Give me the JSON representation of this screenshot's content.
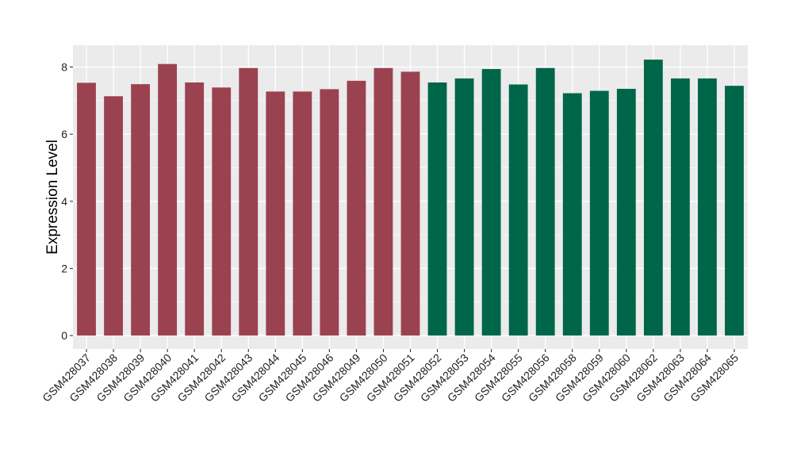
{
  "chart_data": {
    "type": "bar",
    "title": "",
    "xlabel": "",
    "ylabel": "Expression Level",
    "ylim": [
      -0.4,
      8.65
    ],
    "yticks": [
      0,
      2,
      4,
      6,
      8
    ],
    "grid": true,
    "legend": "none",
    "colors": {
      "group1": "#9b4250",
      "group2": "#00664a",
      "panel": "#ebebeb",
      "gridline": "#ffffff"
    },
    "categories": [
      "GSM428037",
      "GSM428038",
      "GSM428039",
      "GSM428040",
      "GSM428041",
      "GSM428042",
      "GSM428043",
      "GSM428044",
      "GSM428045",
      "GSM428046",
      "GSM428049",
      "GSM428050",
      "GSM428051",
      "GSM428052",
      "GSM428053",
      "GSM428054",
      "GSM428055",
      "GSM428056",
      "GSM428058",
      "GSM428059",
      "GSM428060",
      "GSM428062",
      "GSM428063",
      "GSM428064",
      "GSM428065"
    ],
    "values": [
      7.53,
      7.13,
      7.49,
      8.09,
      7.54,
      7.39,
      7.97,
      7.27,
      7.27,
      7.34,
      7.59,
      7.97,
      7.86,
      7.54,
      7.66,
      7.94,
      7.48,
      7.97,
      7.22,
      7.29,
      7.35,
      8.22,
      7.66,
      7.66,
      7.44
    ],
    "groups": [
      "group1",
      "group1",
      "group1",
      "group1",
      "group1",
      "group1",
      "group1",
      "group1",
      "group1",
      "group1",
      "group1",
      "group1",
      "group1",
      "group2",
      "group2",
      "group2",
      "group2",
      "group2",
      "group2",
      "group2",
      "group2",
      "group2",
      "group2",
      "group2",
      "group2"
    ]
  }
}
